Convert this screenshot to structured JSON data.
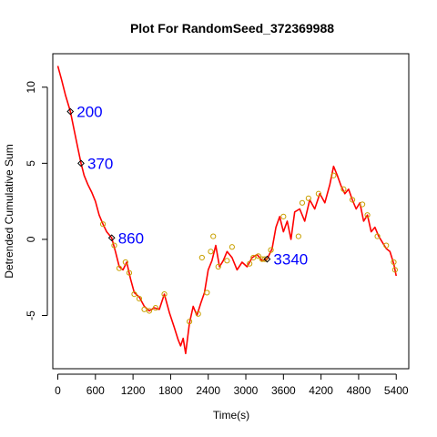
{
  "chart_data": {
    "type": "line",
    "title": "Plot For RandomSeed_372369988",
    "xlabel": "Time(s)",
    "ylabel": "Detrended Cumulative Sum",
    "xlim": [
      -80,
      5600
    ],
    "ylim": [
      -8.5,
      12.2
    ],
    "x_ticks": [
      0,
      600,
      1200,
      1800,
      2400,
      3000,
      3600,
      4200,
      4800,
      5400
    ],
    "y_ticks": [
      -5,
      0,
      5,
      10
    ],
    "grid": false,
    "line_color": "#ff0000",
    "marker_color": "#c8a000",
    "annotation_color": "#0000ff",
    "series": [
      {
        "x": [
          0,
          60,
          120,
          200,
          260,
          320,
          370,
          420,
          480,
          540,
          600,
          660,
          720,
          780,
          860,
          920,
          980,
          1040,
          1100,
          1160,
          1220,
          1300,
          1380,
          1460,
          1540,
          1620,
          1700,
          1780,
          1860,
          1920,
          1960,
          2000,
          2040,
          2100,
          2160,
          2220,
          2280,
          2340,
          2400,
          2460,
          2520,
          2580,
          2640,
          2700,
          2780,
          2860,
          2940,
          3020,
          3100,
          3180,
          3260,
          3340,
          3420,
          3480,
          3540,
          3600,
          3660,
          3720,
          3780,
          3860,
          3940,
          4020,
          4100,
          4180,
          4260,
          4340,
          4400,
          4460,
          4520,
          4580,
          4640,
          4700,
          4760,
          4820,
          4880,
          4940,
          5000,
          5060,
          5120,
          5180,
          5240,
          5300,
          5360,
          5400
        ],
        "y": [
          11.4,
          10.5,
          9.5,
          8.4,
          7.2,
          6.0,
          5.0,
          4.2,
          3.6,
          3.1,
          2.5,
          1.6,
          1.0,
          0.5,
          0.1,
          -0.8,
          -1.8,
          -2.0,
          -1.5,
          -2.6,
          -3.5,
          -3.8,
          -4.4,
          -4.7,
          -4.5,
          -4.6,
          -3.6,
          -4.8,
          -5.8,
          -6.6,
          -7.0,
          -6.5,
          -7.5,
          -5.5,
          -4.4,
          -5.0,
          -4.2,
          -3.5,
          -2.0,
          -1.4,
          -0.4,
          -1.8,
          -1.4,
          -0.8,
          -1.2,
          -2.0,
          -1.5,
          -1.8,
          -1.2,
          -1.0,
          -1.4,
          -1.3,
          -0.6,
          0.8,
          1.5,
          0.5,
          1.2,
          0.0,
          1.8,
          2.0,
          1.2,
          2.6,
          2.0,
          3.0,
          2.4,
          3.6,
          4.8,
          4.2,
          3.5,
          3.0,
          3.3,
          2.6,
          2.0,
          2.4,
          1.2,
          1.6,
          0.5,
          0.8,
          0.2,
          -0.2,
          -0.6,
          -0.8,
          -1.6,
          -2.4
        ]
      }
    ],
    "markers_circle": [
      {
        "x": 720,
        "y": 1.0
      },
      {
        "x": 900,
        "y": -0.4
      },
      {
        "x": 980,
        "y": -1.9
      },
      {
        "x": 1080,
        "y": -1.5
      },
      {
        "x": 1140,
        "y": -2.2
      },
      {
        "x": 1220,
        "y": -3.6
      },
      {
        "x": 1300,
        "y": -3.9
      },
      {
        "x": 1380,
        "y": -4.6
      },
      {
        "x": 1460,
        "y": -4.7
      },
      {
        "x": 1560,
        "y": -4.5
      },
      {
        "x": 1700,
        "y": -3.6
      },
      {
        "x": 2100,
        "y": -5.4
      },
      {
        "x": 2240,
        "y": -4.9
      },
      {
        "x": 2300,
        "y": -1.2
      },
      {
        "x": 2380,
        "y": -3.5
      },
      {
        "x": 2440,
        "y": -0.8
      },
      {
        "x": 2480,
        "y": 0.2
      },
      {
        "x": 2560,
        "y": -1.8
      },
      {
        "x": 2700,
        "y": -1.4
      },
      {
        "x": 2780,
        "y": -0.5
      },
      {
        "x": 3060,
        "y": -1.6
      },
      {
        "x": 3120,
        "y": -1.2
      },
      {
        "x": 3200,
        "y": -1.1
      },
      {
        "x": 3260,
        "y": -1.3
      },
      {
        "x": 3300,
        "y": -1.3
      },
      {
        "x": 3400,
        "y": -0.7
      },
      {
        "x": 3600,
        "y": 1.5
      },
      {
        "x": 3840,
        "y": 0.2
      },
      {
        "x": 3900,
        "y": 2.4
      },
      {
        "x": 4000,
        "y": 2.7
      },
      {
        "x": 4160,
        "y": 3.0
      },
      {
        "x": 4400,
        "y": 4.2
      },
      {
        "x": 4560,
        "y": 3.3
      },
      {
        "x": 4700,
        "y": 2.6
      },
      {
        "x": 4860,
        "y": 2.3
      },
      {
        "x": 4940,
        "y": 1.6
      },
      {
        "x": 5100,
        "y": 0.2
      },
      {
        "x": 5240,
        "y": -0.4
      },
      {
        "x": 5360,
        "y": -1.5
      },
      {
        "x": 5380,
        "y": -2.0
      }
    ],
    "annotations": [
      {
        "label": "200",
        "x": 200,
        "y": 8.4
      },
      {
        "label": "370",
        "x": 370,
        "y": 5.0
      },
      {
        "label": "860",
        "x": 860,
        "y": 0.1
      },
      {
        "label": "3340",
        "x": 3340,
        "y": -1.3
      }
    ]
  }
}
